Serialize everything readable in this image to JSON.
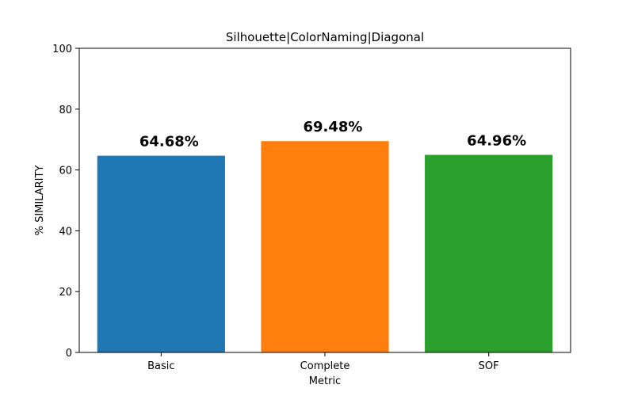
{
  "chart_data": {
    "type": "bar",
    "title": "Silhouette|ColorNaming|Diagonal",
    "xlabel": "Metric",
    "ylabel": "% SIMILARITY",
    "categories": [
      "Basic",
      "Complete",
      "SOF"
    ],
    "values": [
      64.68,
      69.48,
      64.96
    ],
    "value_labels": [
      "64.68%",
      "69.48%",
      "64.96%"
    ],
    "colors": [
      "#1f77b4",
      "#ff7f0e",
      "#2ca02c"
    ],
    "ylim": [
      0,
      100
    ],
    "yticks": [
      0,
      20,
      40,
      60,
      80,
      100
    ],
    "grid": false,
    "legend": "none"
  }
}
